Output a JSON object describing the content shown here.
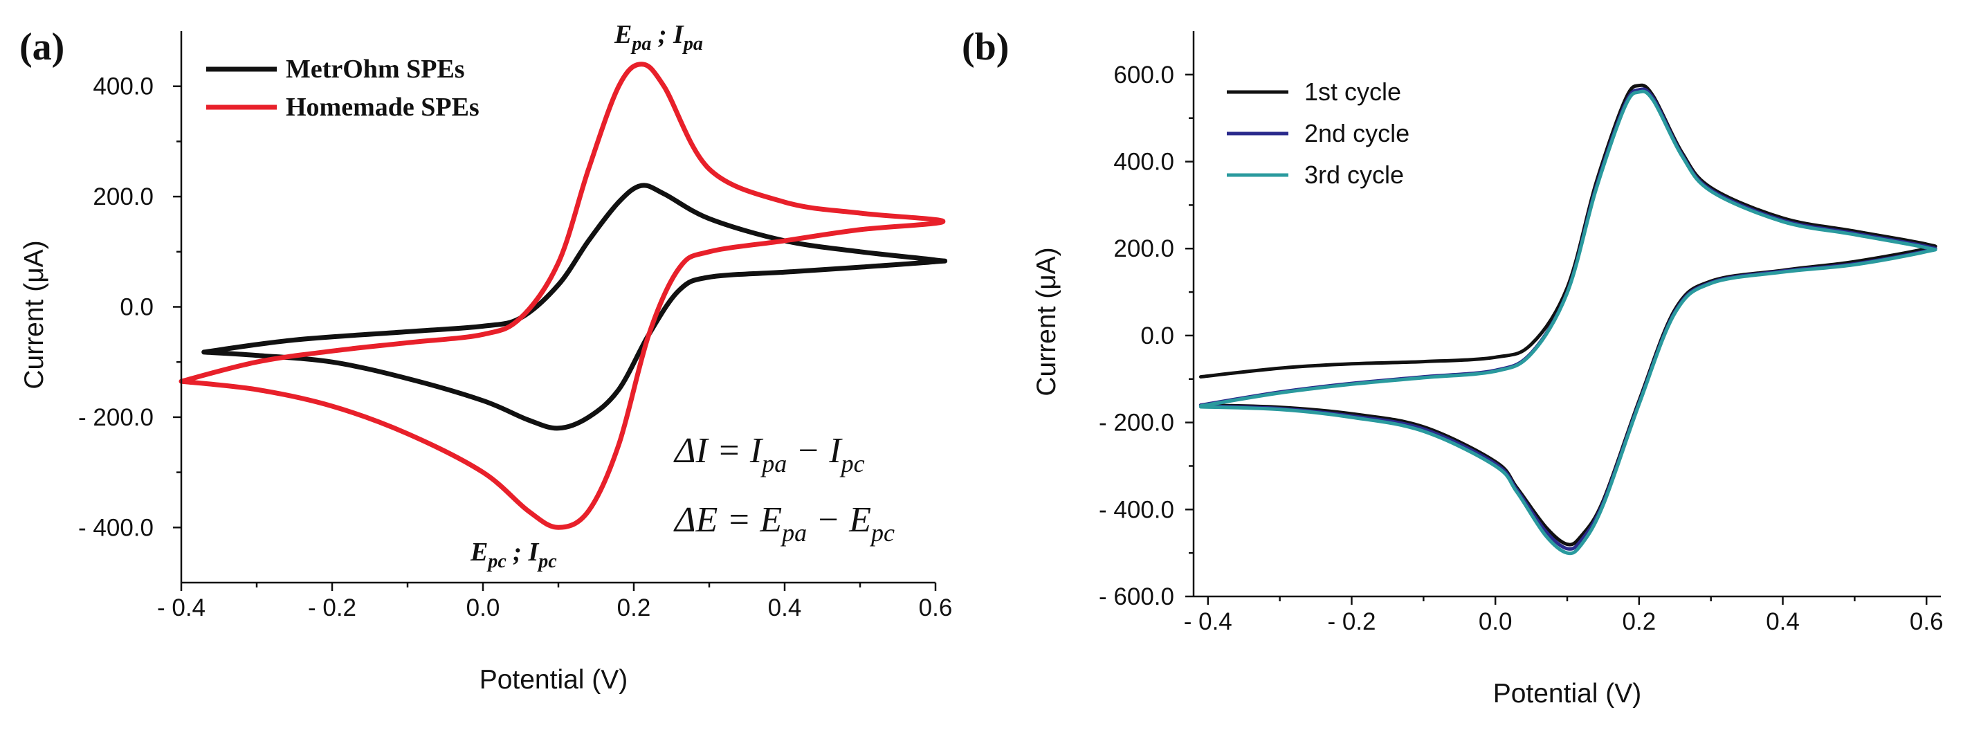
{
  "chart_data": [
    {
      "type": "line",
      "panel": "(a)",
      "xlabel": "Potential (V)",
      "ylabel": "Current (μA)",
      "xlim": [
        -0.4,
        0.6
      ],
      "ylim": [
        -500,
        500
      ],
      "xticks": [
        -0.4,
        -0.2,
        0.0,
        0.2,
        0.4,
        0.6
      ],
      "xtick_labels": [
        "- 0.4",
        "- 0.2",
        "0.0",
        "0.2",
        "0.4",
        "0.6"
      ],
      "yticks": [
        -400,
        -200,
        0,
        200,
        400
      ],
      "ytick_labels": [
        "- 400.0",
        "- 200.0",
        "0.0",
        "200.0",
        "400.0"
      ],
      "legend_position": "top-left",
      "series": [
        {
          "name": "MetrOhm SPEs",
          "color": "#111111",
          "x": [
            -0.37,
            -0.25,
            -0.1,
            0.0,
            0.05,
            0.1,
            0.14,
            0.18,
            0.21,
            0.24,
            0.3,
            0.4,
            0.5,
            0.6,
            0.6,
            0.5,
            0.4,
            0.3,
            0.26,
            0.22,
            0.18,
            0.14,
            0.1,
            0.06,
            0.0,
            -0.1,
            -0.2,
            -0.3,
            -0.37
          ],
          "y": [
            -82,
            -60,
            -45,
            -35,
            -20,
            40,
            120,
            190,
            220,
            205,
            160,
            120,
            100,
            85,
            82,
            72,
            63,
            54,
            30,
            -50,
            -150,
            -200,
            -220,
            -205,
            -170,
            -130,
            -100,
            -88,
            -82
          ]
        },
        {
          "name": "Homemade SPEs",
          "color": "#e8202a",
          "x": [
            -0.4,
            -0.3,
            -0.2,
            -0.1,
            0.0,
            0.05,
            0.1,
            0.14,
            0.18,
            0.21,
            0.24,
            0.3,
            0.4,
            0.5,
            0.61,
            0.5,
            0.4,
            0.3,
            0.26,
            0.22,
            0.18,
            0.14,
            0.1,
            0.06,
            0.0,
            -0.1,
            -0.2,
            -0.3,
            -0.4
          ],
          "y": [
            -135,
            -100,
            -80,
            -65,
            -50,
            -20,
            80,
            250,
            400,
            440,
            400,
            250,
            190,
            170,
            155,
            140,
            120,
            100,
            70,
            -50,
            -250,
            -370,
            -400,
            -370,
            -300,
            -230,
            -180,
            -150,
            -135
          ]
        }
      ],
      "annotations": [
        {
          "text": "E_pa ; I_pa",
          "at": [
            0.21,
            440
          ]
        },
        {
          "text": "E_pc ; I_pc",
          "at": [
            0.09,
            -400
          ]
        },
        {
          "text": "ΔI = I_pa − I_pc"
        },
        {
          "text": "ΔE = E_pa − E_pc"
        }
      ]
    },
    {
      "type": "line",
      "panel": "(b)",
      "xlabel": "Potential (V)",
      "ylabel": "Current (μA)",
      "xlim": [
        -0.42,
        0.62
      ],
      "ylim": [
        -600,
        700
      ],
      "xticks": [
        -0.4,
        -0.2,
        0.0,
        0.2,
        0.4,
        0.6
      ],
      "xtick_labels": [
        "- 0.4",
        "- 0.2",
        "0.0",
        "0.2",
        "0.4",
        "0.6"
      ],
      "yticks": [
        -600,
        -400,
        -200,
        0,
        200,
        400,
        600
      ],
      "ytick_labels": [
        "- 600.0",
        "- 400.0",
        "- 200.0",
        "0.0",
        "200.0",
        "400.0",
        "600.0"
      ],
      "legend_position": "top-left",
      "series": [
        {
          "name": "1st cycle",
          "color": "#111111",
          "x": [
            -0.41,
            -0.3,
            -0.2,
            -0.1,
            0.0,
            0.05,
            0.1,
            0.14,
            0.18,
            0.2,
            0.22,
            0.26,
            0.3,
            0.4,
            0.5,
            0.6,
            0.6,
            0.5,
            0.4,
            0.3,
            0.25,
            0.2,
            0.15,
            0.12,
            0.1,
            0.07,
            0.03,
            0.0,
            -0.1,
            -0.2,
            -0.3,
            -0.41
          ],
          "y": [
            -95,
            -75,
            -65,
            -60,
            -50,
            -20,
            110,
            350,
            540,
            575,
            550,
            420,
            340,
            270,
            240,
            210,
            200,
            170,
            150,
            125,
            60,
            -150,
            -380,
            -460,
            -480,
            -440,
            -350,
            -290,
            -210,
            -180,
            -165,
            -160
          ]
        },
        {
          "name": "2nd cycle",
          "color": "#2a2a8c",
          "x": [
            -0.41,
            -0.3,
            -0.2,
            -0.1,
            0.0,
            0.05,
            0.1,
            0.14,
            0.18,
            0.2,
            0.22,
            0.26,
            0.3,
            0.4,
            0.5,
            0.6,
            0.6,
            0.5,
            0.4,
            0.3,
            0.25,
            0.2,
            0.15,
            0.12,
            0.1,
            0.07,
            0.03,
            0.0,
            -0.1,
            -0.2,
            -0.3,
            -0.41
          ],
          "y": [
            -160,
            -130,
            -110,
            -95,
            -80,
            -40,
            100,
            340,
            530,
            565,
            545,
            415,
            335,
            265,
            235,
            205,
            195,
            165,
            148,
            122,
            55,
            -155,
            -385,
            -470,
            -490,
            -450,
            -355,
            -295,
            -215,
            -185,
            -168,
            -162
          ]
        },
        {
          "name": "3rd cycle",
          "color": "#2a9a9e",
          "x": [
            -0.41,
            -0.3,
            -0.2,
            -0.1,
            0.0,
            0.05,
            0.1,
            0.14,
            0.18,
            0.2,
            0.22,
            0.26,
            0.3,
            0.4,
            0.5,
            0.6,
            0.6,
            0.5,
            0.4,
            0.3,
            0.25,
            0.2,
            0.15,
            0.12,
            0.1,
            0.07,
            0.03,
            0.0,
            -0.1,
            -0.2,
            -0.3,
            -0.41
          ],
          "y": [
            -162,
            -132,
            -112,
            -97,
            -82,
            -42,
            98,
            335,
            525,
            560,
            540,
            412,
            332,
            262,
            232,
            202,
            193,
            163,
            146,
            120,
            52,
            -158,
            -390,
            -480,
            -500,
            -460,
            -360,
            -300,
            -220,
            -188,
            -170,
            -164
          ]
        }
      ]
    }
  ]
}
